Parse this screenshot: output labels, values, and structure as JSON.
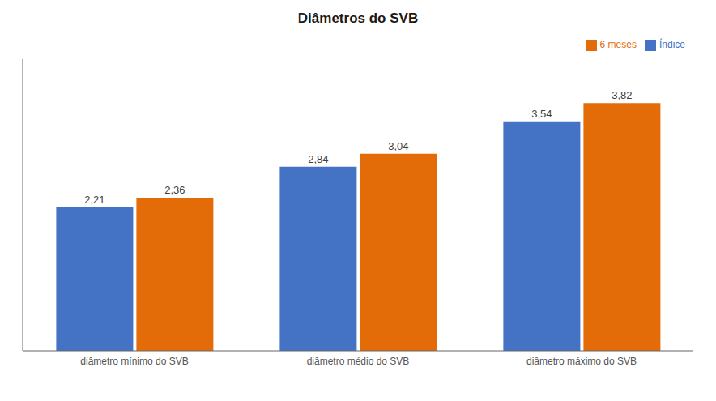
{
  "chart_data": {
    "type": "bar",
    "title": "Diâmetros do SVB",
    "categories": [
      "diâmetro mínimo do SVB",
      "diâmetro médio do SVB",
      "diâmetro máximo do SVB"
    ],
    "series": [
      {
        "name": "Índice",
        "color": "#4472C4",
        "values": [
          2.21,
          2.84,
          3.54
        ],
        "value_labels": [
          "2,21",
          "2,84",
          "3,54"
        ]
      },
      {
        "name": "6 meses",
        "color": "#E36C09",
        "values": [
          2.36,
          3.04,
          3.82
        ],
        "value_labels": [
          "2,36",
          "3,04",
          "3,82"
        ]
      }
    ],
    "ylim": [
      0,
      4.5
    ],
    "grid": false,
    "legend": "upper right",
    "data_labels": true,
    "tick_labels": "x"
  }
}
